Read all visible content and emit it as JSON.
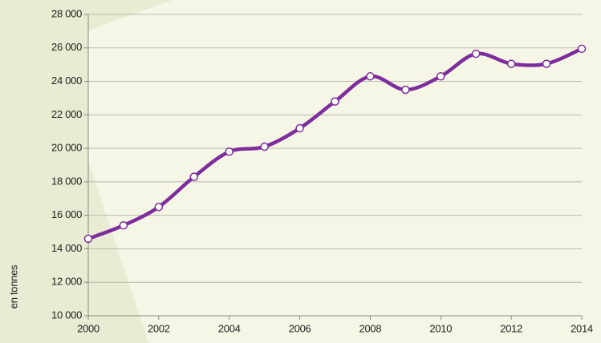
{
  "chart_data": {
    "type": "line",
    "y_label": "en tonnes",
    "x": [
      2000,
      2001,
      2002,
      2003,
      2004,
      2005,
      2006,
      2007,
      2008,
      2009,
      2010,
      2011,
      2012,
      2013,
      2014
    ],
    "series": [
      {
        "name": null,
        "color": "#7d2d9c",
        "values": [
          14600,
          15400,
          16500,
          18300,
          19800,
          20100,
          21200,
          22800,
          24300,
          23500,
          24300,
          25650,
          25050,
          25050,
          25950
        ]
      }
    ],
    "xlim": [
      2000,
      2014
    ],
    "xticks": [
      2000,
      2002,
      2004,
      2006,
      2008,
      2010,
      2012,
      2014
    ],
    "ylim": [
      10000,
      28000
    ],
    "yticks": [
      {
        "value": 10000,
        "label": "10 000"
      },
      {
        "value": 12000,
        "label": "12 000"
      },
      {
        "value": 14000,
        "label": "14 000"
      },
      {
        "value": 16000,
        "label": "16 000"
      },
      {
        "value": 18000,
        "label": "18 000"
      },
      {
        "value": 20000,
        "label": "20 000"
      },
      {
        "value": 22000,
        "label": "22 000"
      },
      {
        "value": 24000,
        "label": "24 000"
      },
      {
        "value": 26000,
        "label": "26 000"
      },
      {
        "value": 28000,
        "label": "28 000"
      }
    ],
    "grid": true
  }
}
